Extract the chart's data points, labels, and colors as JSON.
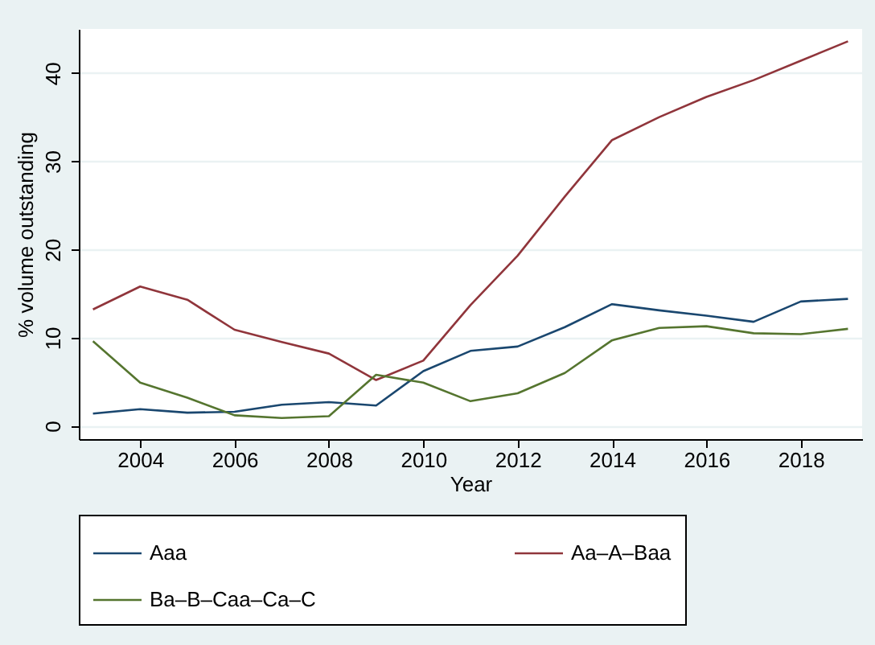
{
  "chart_data": {
    "type": "line",
    "xlabel": "Year",
    "ylabel": "% volume outstanding",
    "x": [
      2003,
      2004,
      2005,
      2006,
      2007,
      2008,
      2009,
      2010,
      2011,
      2012,
      2013,
      2014,
      2015,
      2016,
      2017,
      2018,
      2019
    ],
    "series": [
      {
        "name": "Aaa",
        "color": "#1a476f",
        "values": [
          1.4,
          1.9,
          1.5,
          1.6,
          2.4,
          2.7,
          2.3,
          6.2,
          8.5,
          9.0,
          11.2,
          13.8,
          13.1,
          12.5,
          11.8,
          14.1,
          14.4
        ]
      },
      {
        "name": "Aa–A–Baa",
        "color": "#90353b",
        "values": [
          13.2,
          15.8,
          14.3,
          10.9,
          9.5,
          8.2,
          5.2,
          7.4,
          13.7,
          19.3,
          26.0,
          32.4,
          35.0,
          37.3,
          39.2,
          41.4,
          43.6
        ]
      },
      {
        "name": "Ba–B–Caa–Ca–C",
        "color": "#55752f",
        "values": [
          9.6,
          4.9,
          3.2,
          1.2,
          0.9,
          1.1,
          5.8,
          4.9,
          2.8,
          3.7,
          6.0,
          9.7,
          11.1,
          11.3,
          10.5,
          10.4,
          11.0
        ]
      }
    ],
    "xlim": [
      2002.7,
      2019.3
    ],
    "ylim": [
      -1.5,
      45
    ],
    "xticks": [
      2004,
      2006,
      2008,
      2010,
      2012,
      2014,
      2016,
      2018
    ],
    "yticks": [
      0,
      10,
      20,
      30,
      40
    ],
    "grid": "y",
    "legend": "bottom",
    "marker": "none",
    "line_style": "solid"
  }
}
